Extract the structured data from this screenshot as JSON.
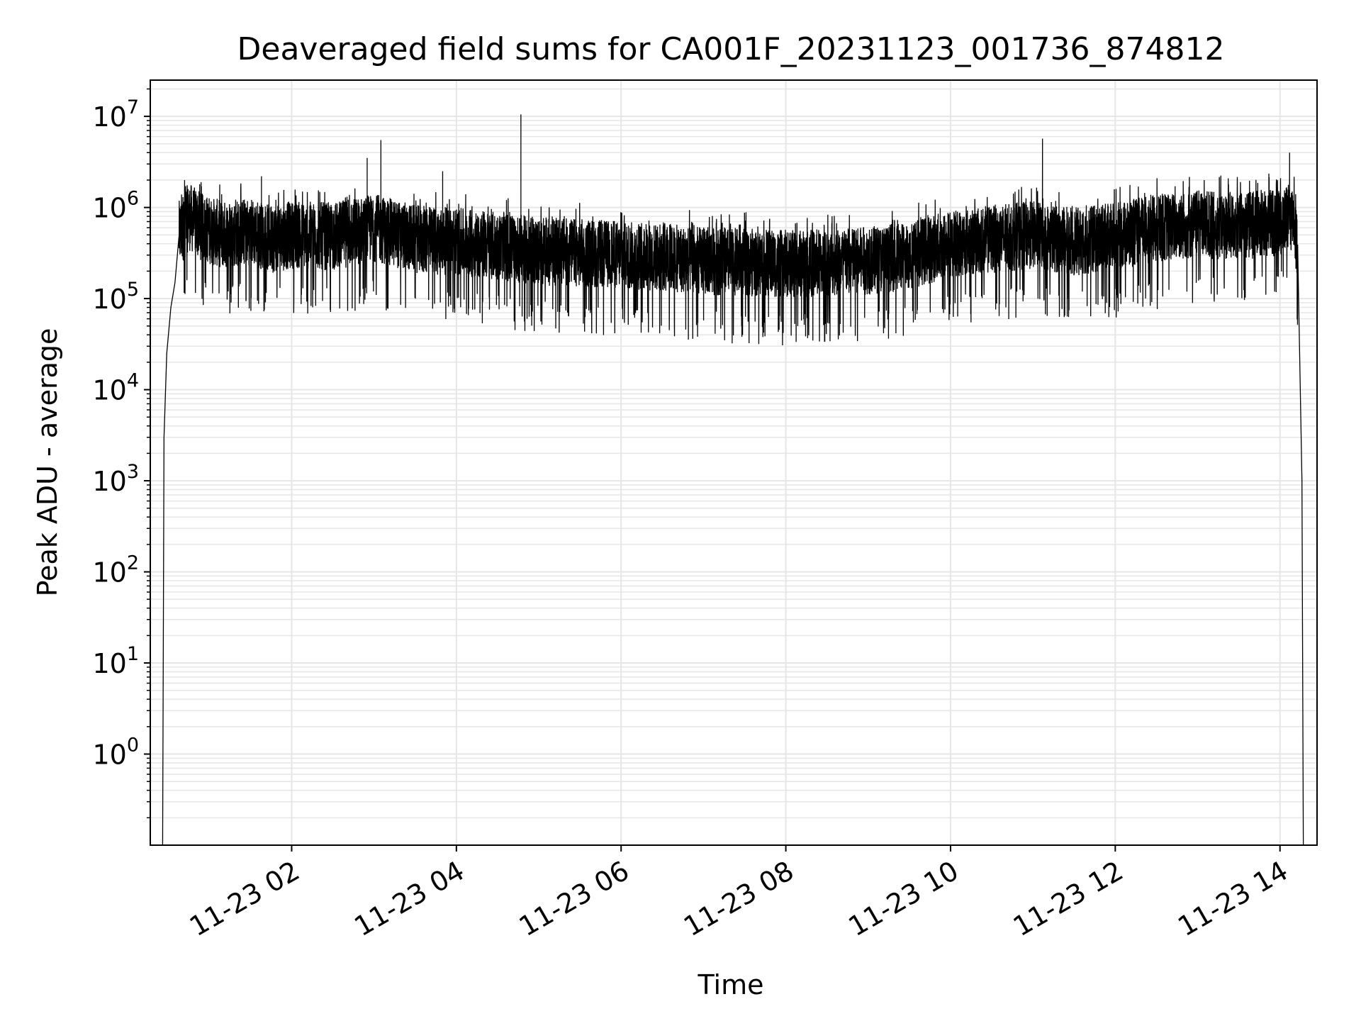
{
  "chart_data": {
    "type": "line",
    "title": "Deaveraged field sums for CA001F_20231123_001736_874812",
    "xlabel": "Time",
    "ylabel": "Peak ADU - average",
    "yscale": "log",
    "ylim": [
      0.1,
      25000000
    ],
    "xlim": [
      "2023-11-23 00:17",
      "2023-11-23 14:27"
    ],
    "grid": true,
    "x_ticks": [
      {
        "at": "2023-11-23 02:00",
        "label": "11-23 02"
      },
      {
        "at": "2023-11-23 04:00",
        "label": "11-23 04"
      },
      {
        "at": "2023-11-23 06:00",
        "label": "11-23 06"
      },
      {
        "at": "2023-11-23 08:00",
        "label": "11-23 08"
      },
      {
        "at": "2023-11-23 10:00",
        "label": "11-23 10"
      },
      {
        "at": "2023-11-23 12:00",
        "label": "11-23 12"
      },
      {
        "at": "2023-11-23 14:00",
        "label": "11-23 14"
      }
    ],
    "y_ticks": [
      {
        "value": 1,
        "base": "10",
        "exp": "0"
      },
      {
        "value": 10,
        "base": "10",
        "exp": "1"
      },
      {
        "value": 100,
        "base": "10",
        "exp": "2"
      },
      {
        "value": 1000,
        "base": "10",
        "exp": "3"
      },
      {
        "value": 10000,
        "base": "10",
        "exp": "4"
      },
      {
        "value": 100000,
        "base": "10",
        "exp": "5"
      },
      {
        "value": 1000000,
        "base": "10",
        "exp": "6"
      },
      {
        "value": 10000000,
        "base": "10",
        "exp": "7"
      }
    ],
    "series": [
      {
        "color": "#000000",
        "points": [
          [
            "2023-11-23 00:26",
            0.1
          ],
          [
            "2023-11-23 00:27",
            3000
          ],
          [
            "2023-11-23 00:29",
            25000
          ],
          [
            "2023-11-23 00:32",
            80000
          ],
          [
            "2023-11-23 00:35",
            150000
          ],
          [
            "2023-11-23 00:38",
            500000
          ],
          [
            "2023-11-23 00:45",
            800000
          ],
          [
            "2023-11-23 00:55",
            600000
          ],
          [
            "2023-11-23 01:10",
            500000
          ],
          [
            "2023-11-23 01:30",
            550000
          ],
          [
            "2023-11-23 01:45",
            450000
          ],
          [
            "2023-11-23 02:00",
            500000
          ],
          [
            "2023-11-23 02:30",
            480000
          ],
          [
            "2023-11-23 03:00",
            600000
          ],
          [
            "2023-11-23 03:30",
            450000
          ],
          [
            "2023-11-23 04:00",
            420000
          ],
          [
            "2023-11-23 04:30",
            380000
          ],
          [
            "2023-11-23 05:00",
            330000
          ],
          [
            "2023-11-23 05:30",
            320000
          ],
          [
            "2023-11-23 06:00",
            300000
          ],
          [
            "2023-11-23 06:30",
            280000
          ],
          [
            "2023-11-23 07:00",
            260000
          ],
          [
            "2023-11-23 07:30",
            250000
          ],
          [
            "2023-11-23 08:00",
            240000
          ],
          [
            "2023-11-23 08:30",
            250000
          ],
          [
            "2023-11-23 09:00",
            260000
          ],
          [
            "2023-11-23 09:30",
            300000
          ],
          [
            "2023-11-23 10:00",
            400000
          ],
          [
            "2023-11-23 10:30",
            450000
          ],
          [
            "2023-11-23 11:00",
            500000
          ],
          [
            "2023-11-23 11:30",
            420000
          ],
          [
            "2023-11-23 12:00",
            480000
          ],
          [
            "2023-11-23 12:30",
            600000
          ],
          [
            "2023-11-23 13:00",
            650000
          ],
          [
            "2023-11-23 13:30",
            620000
          ],
          [
            "2023-11-23 14:00",
            700000
          ],
          [
            "2023-11-23 14:10",
            800000
          ],
          [
            "2023-11-23 14:13",
            300000
          ],
          [
            "2023-11-23 14:16",
            1000
          ],
          [
            "2023-11-23 14:17",
            0.1
          ]
        ],
        "spikes": [
          [
            "2023-11-23 00:42",
            2000000
          ],
          [
            "2023-11-23 01:38",
            2200000
          ],
          [
            "2023-11-23 02:55",
            3500000
          ],
          [
            "2023-11-23 03:05",
            5500000
          ],
          [
            "2023-11-23 03:50",
            2500000
          ],
          [
            "2023-11-23 04:47",
            10500000
          ],
          [
            "2023-11-23 11:07",
            5700000
          ],
          [
            "2023-11-23 14:07",
            4000000
          ]
        ]
      }
    ]
  }
}
